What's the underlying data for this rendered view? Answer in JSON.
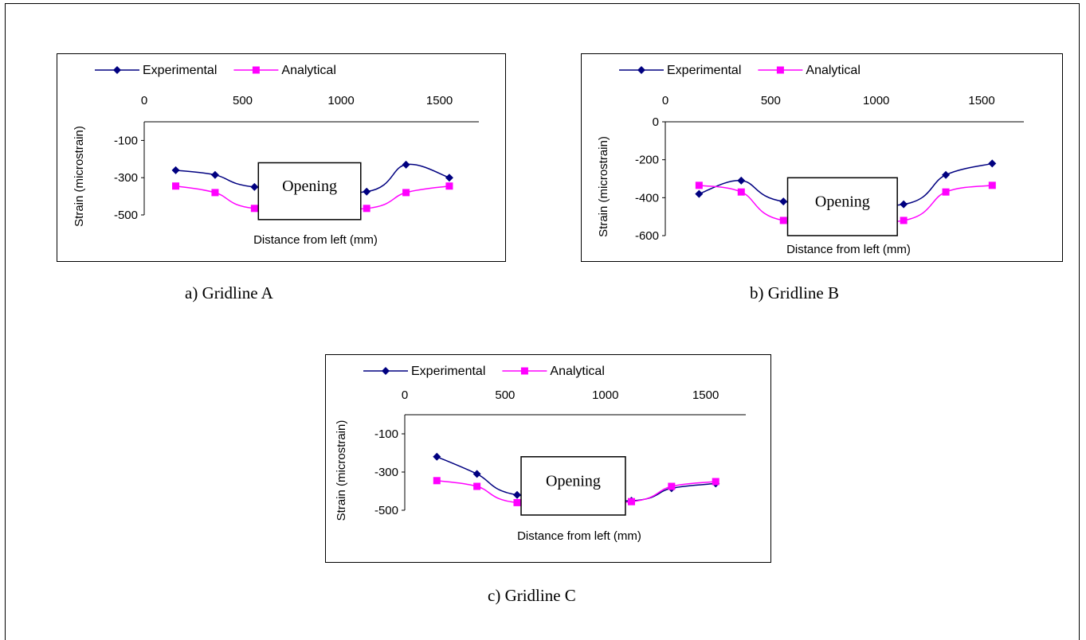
{
  "colors": {
    "experimental": "#000080",
    "analytical": "#ff00ff"
  },
  "chart_data": [
    {
      "type": "line",
      "caption": "a) Gridline A",
      "xlabel": "Distance from left (mm)",
      "ylabel": "Strain (microstrain)",
      "xlim": [
        0,
        1700
      ],
      "ylim": [
        -500,
        0
      ],
      "x_ticks": [
        "0",
        "500",
        "1000",
        "1500"
      ],
      "y_ticks": [
        "-100",
        "-300",
        "-500"
      ],
      "x_axis_position": "top",
      "legend_position": "top",
      "annotation": "Opening",
      "series": [
        {
          "name": "Experimental",
          "color": "#000080",
          "marker": "diamond",
          "x": [
            160,
            360,
            560,
            1130,
            1330,
            1550
          ],
          "y": [
            -260,
            -285,
            -350,
            -375,
            -230,
            -300
          ]
        },
        {
          "name": "Analytical",
          "color": "#ff00ff",
          "marker": "square",
          "x": [
            160,
            360,
            560,
            1130,
            1330,
            1550
          ],
          "y": [
            -345,
            -380,
            -465,
            -465,
            -380,
            -345
          ]
        }
      ]
    },
    {
      "type": "line",
      "caption": "b) Gridline B",
      "xlabel": "Distance from left (mm)",
      "ylabel": "Strain (microstrain)",
      "xlim": [
        0,
        1700
      ],
      "ylim": [
        -600,
        0
      ],
      "x_ticks": [
        "0",
        "500",
        "1000",
        "1500"
      ],
      "y_ticks": [
        "0",
        "-200",
        "-400",
        "-600"
      ],
      "x_axis_position": "top",
      "legend_position": "top",
      "annotation": "Opening",
      "series": [
        {
          "name": "Experimental",
          "color": "#000080",
          "marker": "diamond",
          "x": [
            160,
            360,
            560,
            1130,
            1330,
            1550
          ],
          "y": [
            -380,
            -310,
            -420,
            -435,
            -280,
            -220
          ]
        },
        {
          "name": "Analytical",
          "color": "#ff00ff",
          "marker": "square",
          "x": [
            160,
            360,
            560,
            1130,
            1330,
            1550
          ],
          "y": [
            -335,
            -370,
            -520,
            -520,
            -370,
            -335
          ]
        }
      ]
    },
    {
      "type": "line",
      "caption": "c) Gridline C",
      "xlabel": "Distance from left (mm)",
      "ylabel": "Strain (microstrain)",
      "xlim": [
        0,
        1700
      ],
      "ylim": [
        -500,
        0
      ],
      "x_ticks": [
        "0",
        "500",
        "1000",
        "1500"
      ],
      "y_ticks": [
        "-100",
        "-300",
        "-500"
      ],
      "x_axis_position": "top",
      "legend_position": "top",
      "annotation": "Opening",
      "series": [
        {
          "name": "Experimental",
          "color": "#000080",
          "marker": "diamond",
          "x": [
            160,
            360,
            560,
            1130,
            1330,
            1550
          ],
          "y": [
            -220,
            -310,
            -420,
            -450,
            -385,
            -360
          ]
        },
        {
          "name": "Analytical",
          "color": "#ff00ff",
          "marker": "square",
          "x": [
            160,
            360,
            560,
            1130,
            1330,
            1550
          ],
          "y": [
            -345,
            -375,
            -460,
            -455,
            -375,
            -350
          ]
        }
      ]
    }
  ]
}
